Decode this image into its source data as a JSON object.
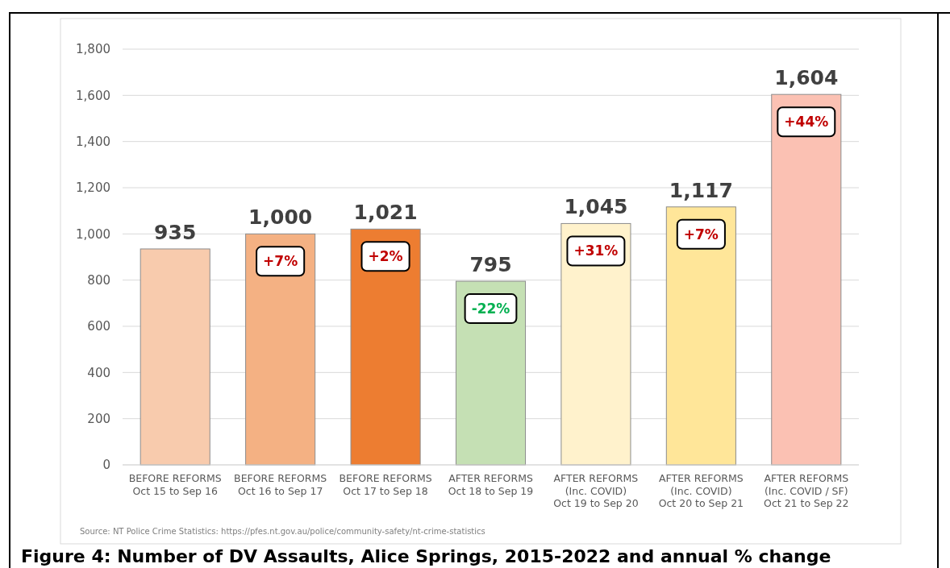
{
  "chart_data": {
    "type": "bar",
    "title": "Figure 4: Number of DV Assaults, Alice Springs, 2015-2022 and annual % change",
    "categories": [
      "BEFORE REFORMS\nOct 15 to Sep 16",
      "BEFORE REFORMS\nOct 16 to Sep 17",
      "BEFORE REFORMS\nOct 17 to Sep 18",
      "AFTER REFORMS\nOct 18 to Sep 19",
      "AFTER REFORMS\n(Inc. COVID)\nOct 19 to Sep 20",
      "AFTER REFORMS\n(Inc. COVID)\nOct 20 to Sep 21",
      "AFTER REFORMS\n(Inc. COVID / SF)\nOct 21 to Sep 22"
    ],
    "values": [
      935,
      1000,
      1021,
      795,
      1045,
      1117,
      1604
    ],
    "colors": [
      "#f8cbad",
      "#f4b183",
      "#ed7d31",
      "#c5e0b4",
      "#fff2cc",
      "#ffe699",
      "#fbc1b3"
    ],
    "value_labels": [
      "935",
      "1,000",
      "1,021",
      "795",
      "1,045",
      "1,117",
      "1,604"
    ],
    "ylim": [
      0,
      1800
    ],
    "yticks": [
      0,
      {
        "value": 200,
        "label": "200"
      },
      {
        "value": 400,
        "label": "400"
      },
      {
        "value": 600,
        "label": "600"
      },
      {
        "value": 800,
        "label": "800"
      },
      {
        "value": 1000,
        "label": "1,000"
      },
      {
        "value": 1200,
        "label": "1,200"
      },
      {
        "value": 1400,
        "label": "1,400"
      },
      {
        "value": 1600,
        "label": "1,600"
      },
      {
        "value": 1800,
        "label": "1,800"
      }
    ],
    "grid": "y",
    "annotations": [
      {
        "text": "+7%",
        "x": "BEFORE REFORMS\nOct 16 to Sep 17",
        "y": 1000
      },
      {
        "text": "+2%",
        "x": "BEFORE REFORMS\nOct 17 to Sep 18",
        "y": 1021
      },
      {
        "text": "-22%",
        "x": "AFTER REFORMS\nOct 18 to Sep 19",
        "y": 795
      },
      {
        "text": "+31%",
        "x": "AFTER REFORMS\n(Inc. COVID)\nOct 19 to Sep 20",
        "y": 1045
      },
      {
        "text": "+7%",
        "x": "AFTER REFORMS\n(Inc. COVID)\nOct 20 to Sep 21",
        "y": 1117
      },
      {
        "text": "+44%",
        "x": "AFTER REFORMS\n(Inc. COVID / SF)\nOct 21 to Sep 22",
        "y": 1604
      },
      "Source: NT Police Crime Statistics: https://pfes.nt.gov.au/police/community-safety/nt-crime-statistics"
    ]
  }
}
